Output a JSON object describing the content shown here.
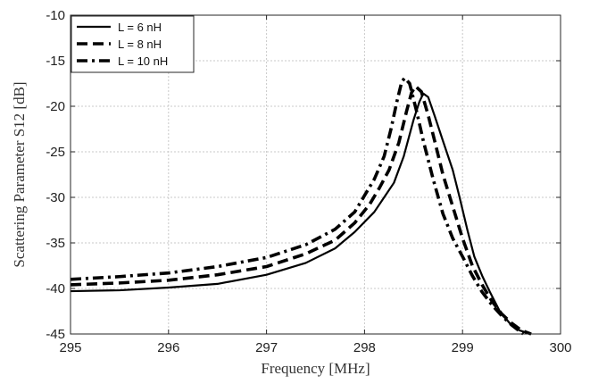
{
  "chart_data": {
    "type": "line",
    "title": "",
    "xlabel": "Frequency [MHz]",
    "ylabel": "Scattering Parameter S12 [dB]",
    "xlim": [
      295,
      300
    ],
    "ylim": [
      -45,
      -10
    ],
    "xticks": [
      "295",
      "296",
      "297",
      "298",
      "299",
      "300"
    ],
    "yticks": [
      "-10",
      "-15",
      "-20",
      "-25",
      "-30",
      "-35",
      "-40",
      "-45"
    ],
    "grid": true,
    "legend_position": "top-left",
    "series": [
      {
        "name": "L = 6 nH",
        "style": "solid",
        "points": [
          [
            295.0,
            -40.3
          ],
          [
            295.5,
            -40.2
          ],
          [
            296.0,
            -39.9
          ],
          [
            296.5,
            -39.5
          ],
          [
            297.0,
            -38.5
          ],
          [
            297.4,
            -37.2
          ],
          [
            297.7,
            -35.6
          ],
          [
            297.9,
            -33.8
          ],
          [
            298.1,
            -31.6
          ],
          [
            298.2,
            -30.0
          ],
          [
            298.3,
            -28.4
          ],
          [
            298.4,
            -25.5
          ],
          [
            298.5,
            -21.5
          ],
          [
            298.56,
            -19.5
          ],
          [
            298.6,
            -18.6
          ],
          [
            298.65,
            -19.0
          ],
          [
            298.72,
            -21.2
          ],
          [
            298.8,
            -23.8
          ],
          [
            298.9,
            -27.0
          ],
          [
            298.97,
            -30.0
          ],
          [
            299.05,
            -33.6
          ],
          [
            299.12,
            -36.5
          ],
          [
            299.2,
            -38.6
          ],
          [
            299.28,
            -40.4
          ],
          [
            299.38,
            -42.5
          ],
          [
            299.48,
            -43.8
          ],
          [
            299.58,
            -44.6
          ],
          [
            299.7,
            -45.0
          ]
        ]
      },
      {
        "name": "L = 8 nH",
        "style": "dashed",
        "points": [
          [
            295.0,
            -39.6
          ],
          [
            295.5,
            -39.4
          ],
          [
            296.0,
            -39.1
          ],
          [
            296.5,
            -38.5
          ],
          [
            297.0,
            -37.6
          ],
          [
            297.4,
            -36.2
          ],
          [
            297.7,
            -34.7
          ],
          [
            297.9,
            -32.8
          ],
          [
            298.05,
            -30.8
          ],
          [
            298.15,
            -29.0
          ],
          [
            298.25,
            -27.0
          ],
          [
            298.35,
            -24.0
          ],
          [
            298.43,
            -20.5
          ],
          [
            298.48,
            -18.5
          ],
          [
            298.52,
            -17.8
          ],
          [
            298.58,
            -18.4
          ],
          [
            298.65,
            -21.0
          ],
          [
            298.72,
            -24.0
          ],
          [
            298.8,
            -27.5
          ],
          [
            298.9,
            -31.0
          ],
          [
            299.0,
            -34.5
          ],
          [
            299.1,
            -37.5
          ],
          [
            299.2,
            -39.6
          ],
          [
            299.3,
            -41.4
          ],
          [
            299.4,
            -42.8
          ],
          [
            299.5,
            -43.8
          ],
          [
            299.6,
            -44.6
          ],
          [
            299.7,
            -45.0
          ]
        ]
      },
      {
        "name": "L = 10 nH",
        "style": "dash-dot",
        "points": [
          [
            295.0,
            -39.0
          ],
          [
            295.5,
            -38.7
          ],
          [
            296.0,
            -38.3
          ],
          [
            296.5,
            -37.6
          ],
          [
            297.0,
            -36.6
          ],
          [
            297.4,
            -35.2
          ],
          [
            297.7,
            -33.5
          ],
          [
            297.9,
            -31.6
          ],
          [
            298.0,
            -29.8
          ],
          [
            298.1,
            -28.0
          ],
          [
            298.2,
            -25.5
          ],
          [
            298.27,
            -22.5
          ],
          [
            298.33,
            -19.5
          ],
          [
            298.38,
            -17.3
          ],
          [
            298.41,
            -16.9
          ],
          [
            298.46,
            -17.5
          ],
          [
            298.53,
            -20.5
          ],
          [
            298.6,
            -23.8
          ],
          [
            298.7,
            -28.0
          ],
          [
            298.8,
            -31.8
          ],
          [
            298.9,
            -34.5
          ],
          [
            299.0,
            -36.5
          ],
          [
            299.1,
            -38.6
          ],
          [
            299.2,
            -40.4
          ],
          [
            299.3,
            -41.8
          ],
          [
            299.4,
            -43.0
          ],
          [
            299.5,
            -44.0
          ],
          [
            299.62,
            -45.0
          ]
        ]
      }
    ]
  }
}
